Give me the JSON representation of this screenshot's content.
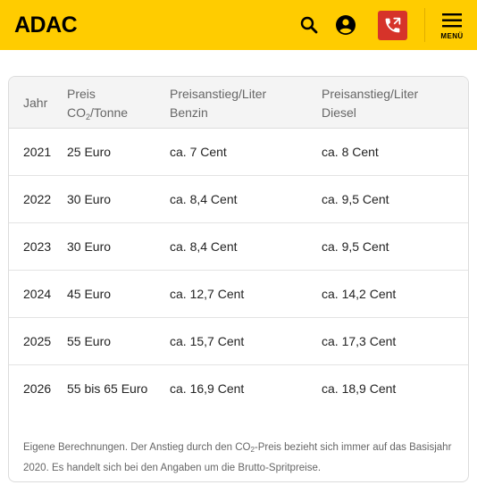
{
  "header": {
    "logo": "ADAC",
    "menu_label": "MENÜ",
    "colors": {
      "background": "#ffcc00",
      "call_button": "#d6332a"
    },
    "icons": [
      "search-icon",
      "account-icon",
      "phone-call-icon",
      "hamburger-icon"
    ]
  },
  "table": {
    "headers": {
      "year": "Jahr",
      "price_line1": "Preis",
      "price_line2_pre": "CO",
      "price_line2_sub": "2",
      "price_line2_post": "/Tonne",
      "petrol_line1": "Preisanstieg/Liter",
      "petrol_line2": "Benzin",
      "diesel_line1": "Preisanstieg/Liter",
      "diesel_line2": "Diesel"
    },
    "rows": [
      {
        "year": "2021",
        "price": "25 Euro",
        "petrol": "ca. 7 Cent",
        "diesel": "ca. 8 Cent"
      },
      {
        "year": "2022",
        "price": "30 Euro",
        "petrol": "ca. 8,4 Cent",
        "diesel": "ca. 9,5 Cent"
      },
      {
        "year": "2023",
        "price": "30 Euro",
        "petrol": "ca. 8,4 Cent",
        "diesel": "ca. 9,5 Cent"
      },
      {
        "year": "2024",
        "price": "45 Euro",
        "petrol": "ca. 12,7 Cent",
        "diesel": "ca. 14,2 Cent"
      },
      {
        "year": "2025",
        "price": "55 Euro",
        "petrol": "ca. 15,7 Cent",
        "diesel": "ca. 17,3 Cent"
      },
      {
        "year": "2026",
        "price": "55 bis 65 Euro",
        "petrol": "ca. 16,9 Cent",
        "diesel": "ca. 18,9 Cent"
      }
    ],
    "note": {
      "part1": "Eigene Berechnungen. Der Anstieg durch den CO",
      "sub": "2",
      "part2": "-Preis bezieht sich immer auf das Basisjahr 2020. Es handelt sich bei den Angaben um die Brutto-Spritpreise."
    }
  }
}
